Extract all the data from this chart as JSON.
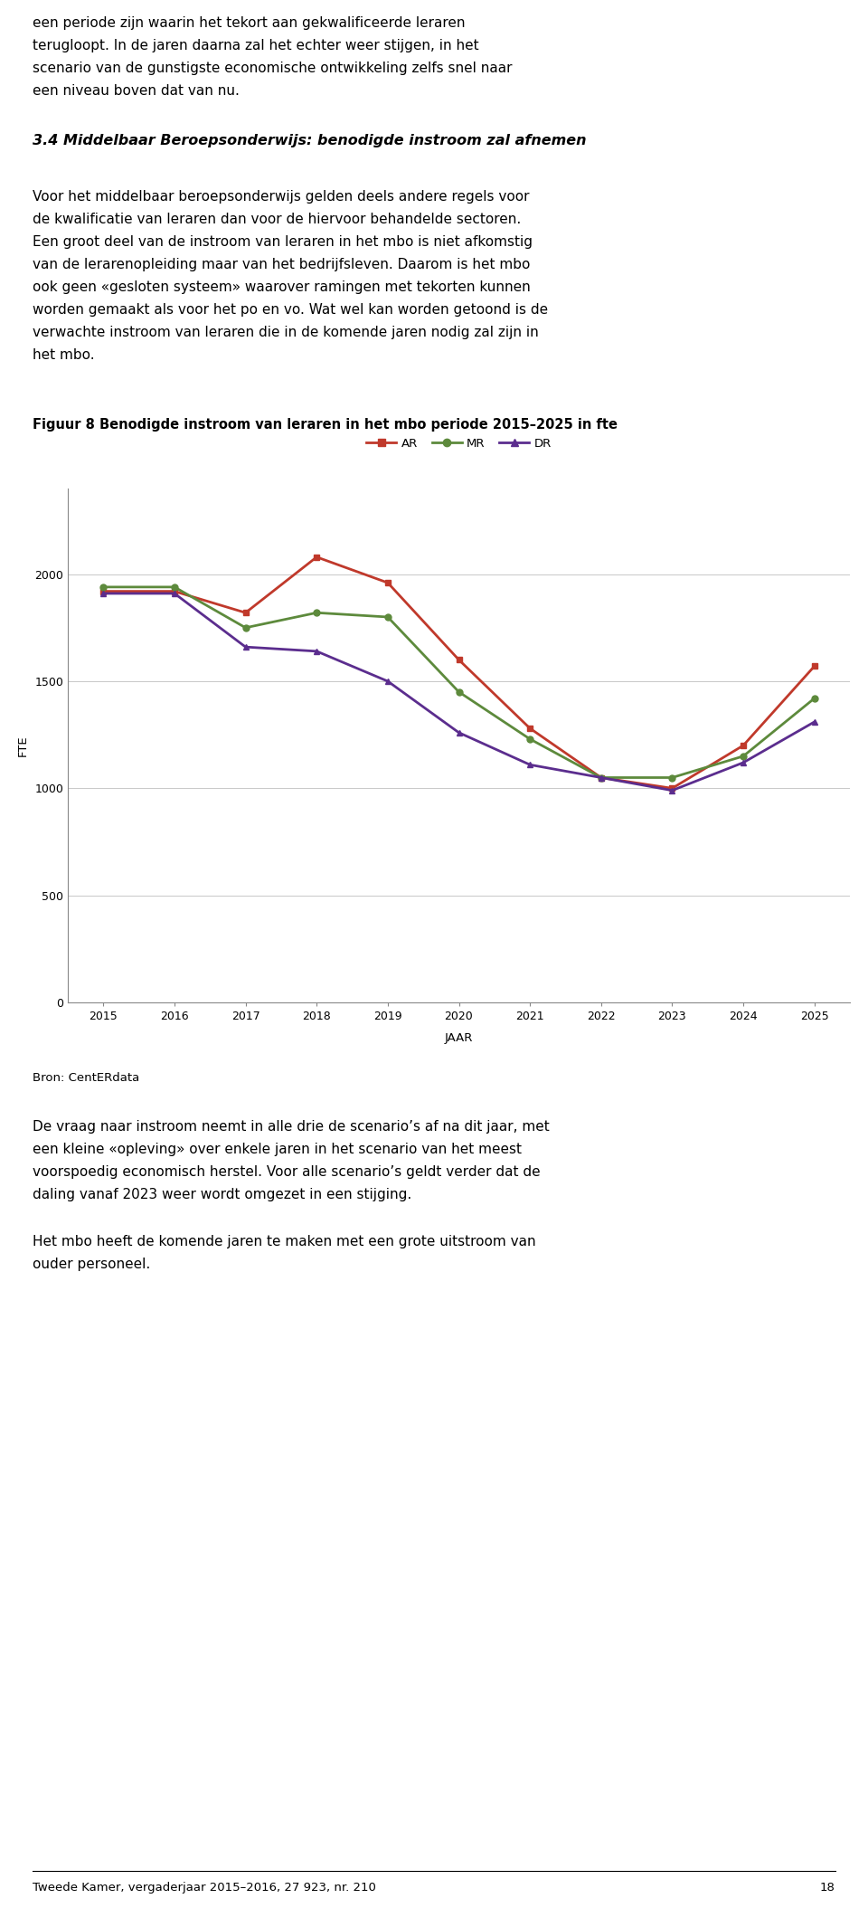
{
  "chart": {
    "years": [
      2015,
      2016,
      2017,
      2018,
      2019,
      2020,
      2021,
      2022,
      2023,
      2024,
      2025
    ],
    "AR": [
      1920,
      1920,
      1820,
      2080,
      1960,
      1600,
      1280,
      1050,
      1000,
      1200,
      1570
    ],
    "MR": [
      1940,
      1940,
      1750,
      1820,
      1800,
      1450,
      1230,
      1050,
      1050,
      1150,
      1420
    ],
    "DR": [
      1910,
      1910,
      1660,
      1640,
      1500,
      1260,
      1110,
      1050,
      990,
      1120,
      1310
    ],
    "AR_color": "#c0392b",
    "MR_color": "#5d8a3c",
    "DR_color": "#5b2d8e",
    "ylabel": "FTE",
    "xlabel": "JAAR",
    "ylim": [
      0,
      2400
    ],
    "yticks": [
      0,
      500,
      1000,
      1500,
      2000
    ],
    "grid_color": "#c8c8c8"
  },
  "text_para1_lines": [
    "een periode zijn waarin het tekort aan gekwalificeerde leraren",
    "terugloopt. In de jaren daarna zal het echter weer stijgen, in het",
    "scenario van de gunstigste economische ontwikkeling zelfs snel naar",
    "een niveau boven dat van nu."
  ],
  "text_heading": "3.4 Middelbaar Beroepsonderwijs: benodigde instroom zal afnemen",
  "text_para2_lines": [
    "Voor het middelbaar beroepsonderwijs gelden deels andere regels voor",
    "de kwalificatie van leraren dan voor de hiervoor behandelde sectoren.",
    "Een groot deel van de instroom van leraren in het mbo is niet afkomstig",
    "van de lerarenopleiding maar van het bedrijfsleven. Daarom is het mbo",
    "ook geen «gesloten systeem» waarover ramingen met tekorten kunnen",
    "worden gemaakt als voor het po en vo. Wat wel kan worden getoond is de",
    "verwachte instroom van leraren die in de komende jaren nodig zal zijn in",
    "het mbo."
  ],
  "fig_caption": "Figuur 8 Benodigde instroom van leraren in het mbo periode 2015–2025 in fte",
  "bron": "Bron: CentERdata",
  "text_para3_lines": [
    "De vraag naar instroom neemt in alle drie de scenario’s af na dit jaar, met",
    "een kleine «opleving» over enkele jaren in het scenario van het meest",
    "voorspoedig economisch herstel. Voor alle scenario’s geldt verder dat de",
    "daling vanaf 2023 weer wordt omgezet in een stijging."
  ],
  "text_para4_lines": [
    "Het mbo heeft de komende jaren te maken met een grote uitstroom van",
    "ouder personeel."
  ],
  "footer_text": "Tweede Kamer, vergaderjaar 2015–2016, 27 923, nr. 210",
  "footer_page": "18",
  "page_bg": "#ffffff"
}
